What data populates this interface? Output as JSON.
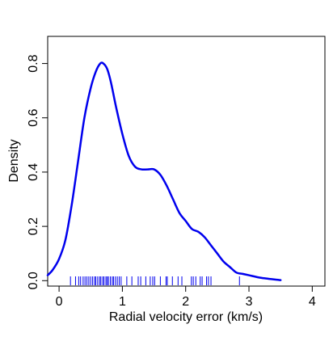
{
  "chart_data": {
    "type": "line",
    "title": "",
    "xlabel": "Radial velocity error (km/s)",
    "ylabel": "Density",
    "xlim": [
      -0.18,
      4.2
    ],
    "ylim": [
      -0.02,
      0.9
    ],
    "xticks": [
      0,
      1,
      2,
      3,
      4
    ],
    "xtick_labels": [
      "0",
      "1",
      "2",
      "3",
      "4"
    ],
    "yticks": [
      0.0,
      0.2,
      0.4,
      0.6,
      0.8
    ],
    "ytick_labels": [
      "0.0",
      "0.2",
      "0.4",
      "0.6",
      "0.8"
    ],
    "grid": false,
    "series": [
      {
        "color": "#0000ee",
        "x": [
          -0.18,
          -0.1,
          0.0,
          0.1,
          0.2,
          0.3,
          0.4,
          0.5,
          0.58,
          0.65,
          0.7,
          0.76,
          0.82,
          0.9,
          1.0,
          1.1,
          1.2,
          1.3,
          1.4,
          1.5,
          1.6,
          1.7,
          1.8,
          1.9,
          2.0,
          2.1,
          2.2,
          2.3,
          2.4,
          2.5,
          2.6,
          2.7,
          2.8,
          2.9,
          3.0,
          3.2,
          3.5
        ],
        "y": [
          0.02,
          0.04,
          0.08,
          0.15,
          0.28,
          0.44,
          0.6,
          0.71,
          0.77,
          0.8,
          0.8,
          0.78,
          0.73,
          0.64,
          0.54,
          0.46,
          0.42,
          0.41,
          0.41,
          0.41,
          0.39,
          0.35,
          0.3,
          0.25,
          0.22,
          0.19,
          0.18,
          0.16,
          0.13,
          0.1,
          0.07,
          0.05,
          0.03,
          0.025,
          0.02,
          0.01,
          0.002
        ]
      }
    ],
    "rug": {
      "color": "#0000ee",
      "values": [
        0.18,
        0.26,
        0.31,
        0.34,
        0.38,
        0.41,
        0.44,
        0.47,
        0.5,
        0.53,
        0.56,
        0.58,
        0.61,
        0.64,
        0.66,
        0.69,
        0.71,
        0.74,
        0.76,
        0.78,
        0.81,
        0.84,
        0.86,
        0.89,
        0.92,
        0.95,
        0.98,
        1.07,
        1.15,
        1.25,
        1.29,
        1.37,
        1.44,
        1.48,
        1.51,
        1.6,
        1.69,
        1.71,
        1.79,
        1.88,
        1.94,
        2.09,
        2.12,
        2.16,
        2.23,
        2.26,
        2.33,
        2.36,
        2.4,
        2.85
      ]
    }
  }
}
